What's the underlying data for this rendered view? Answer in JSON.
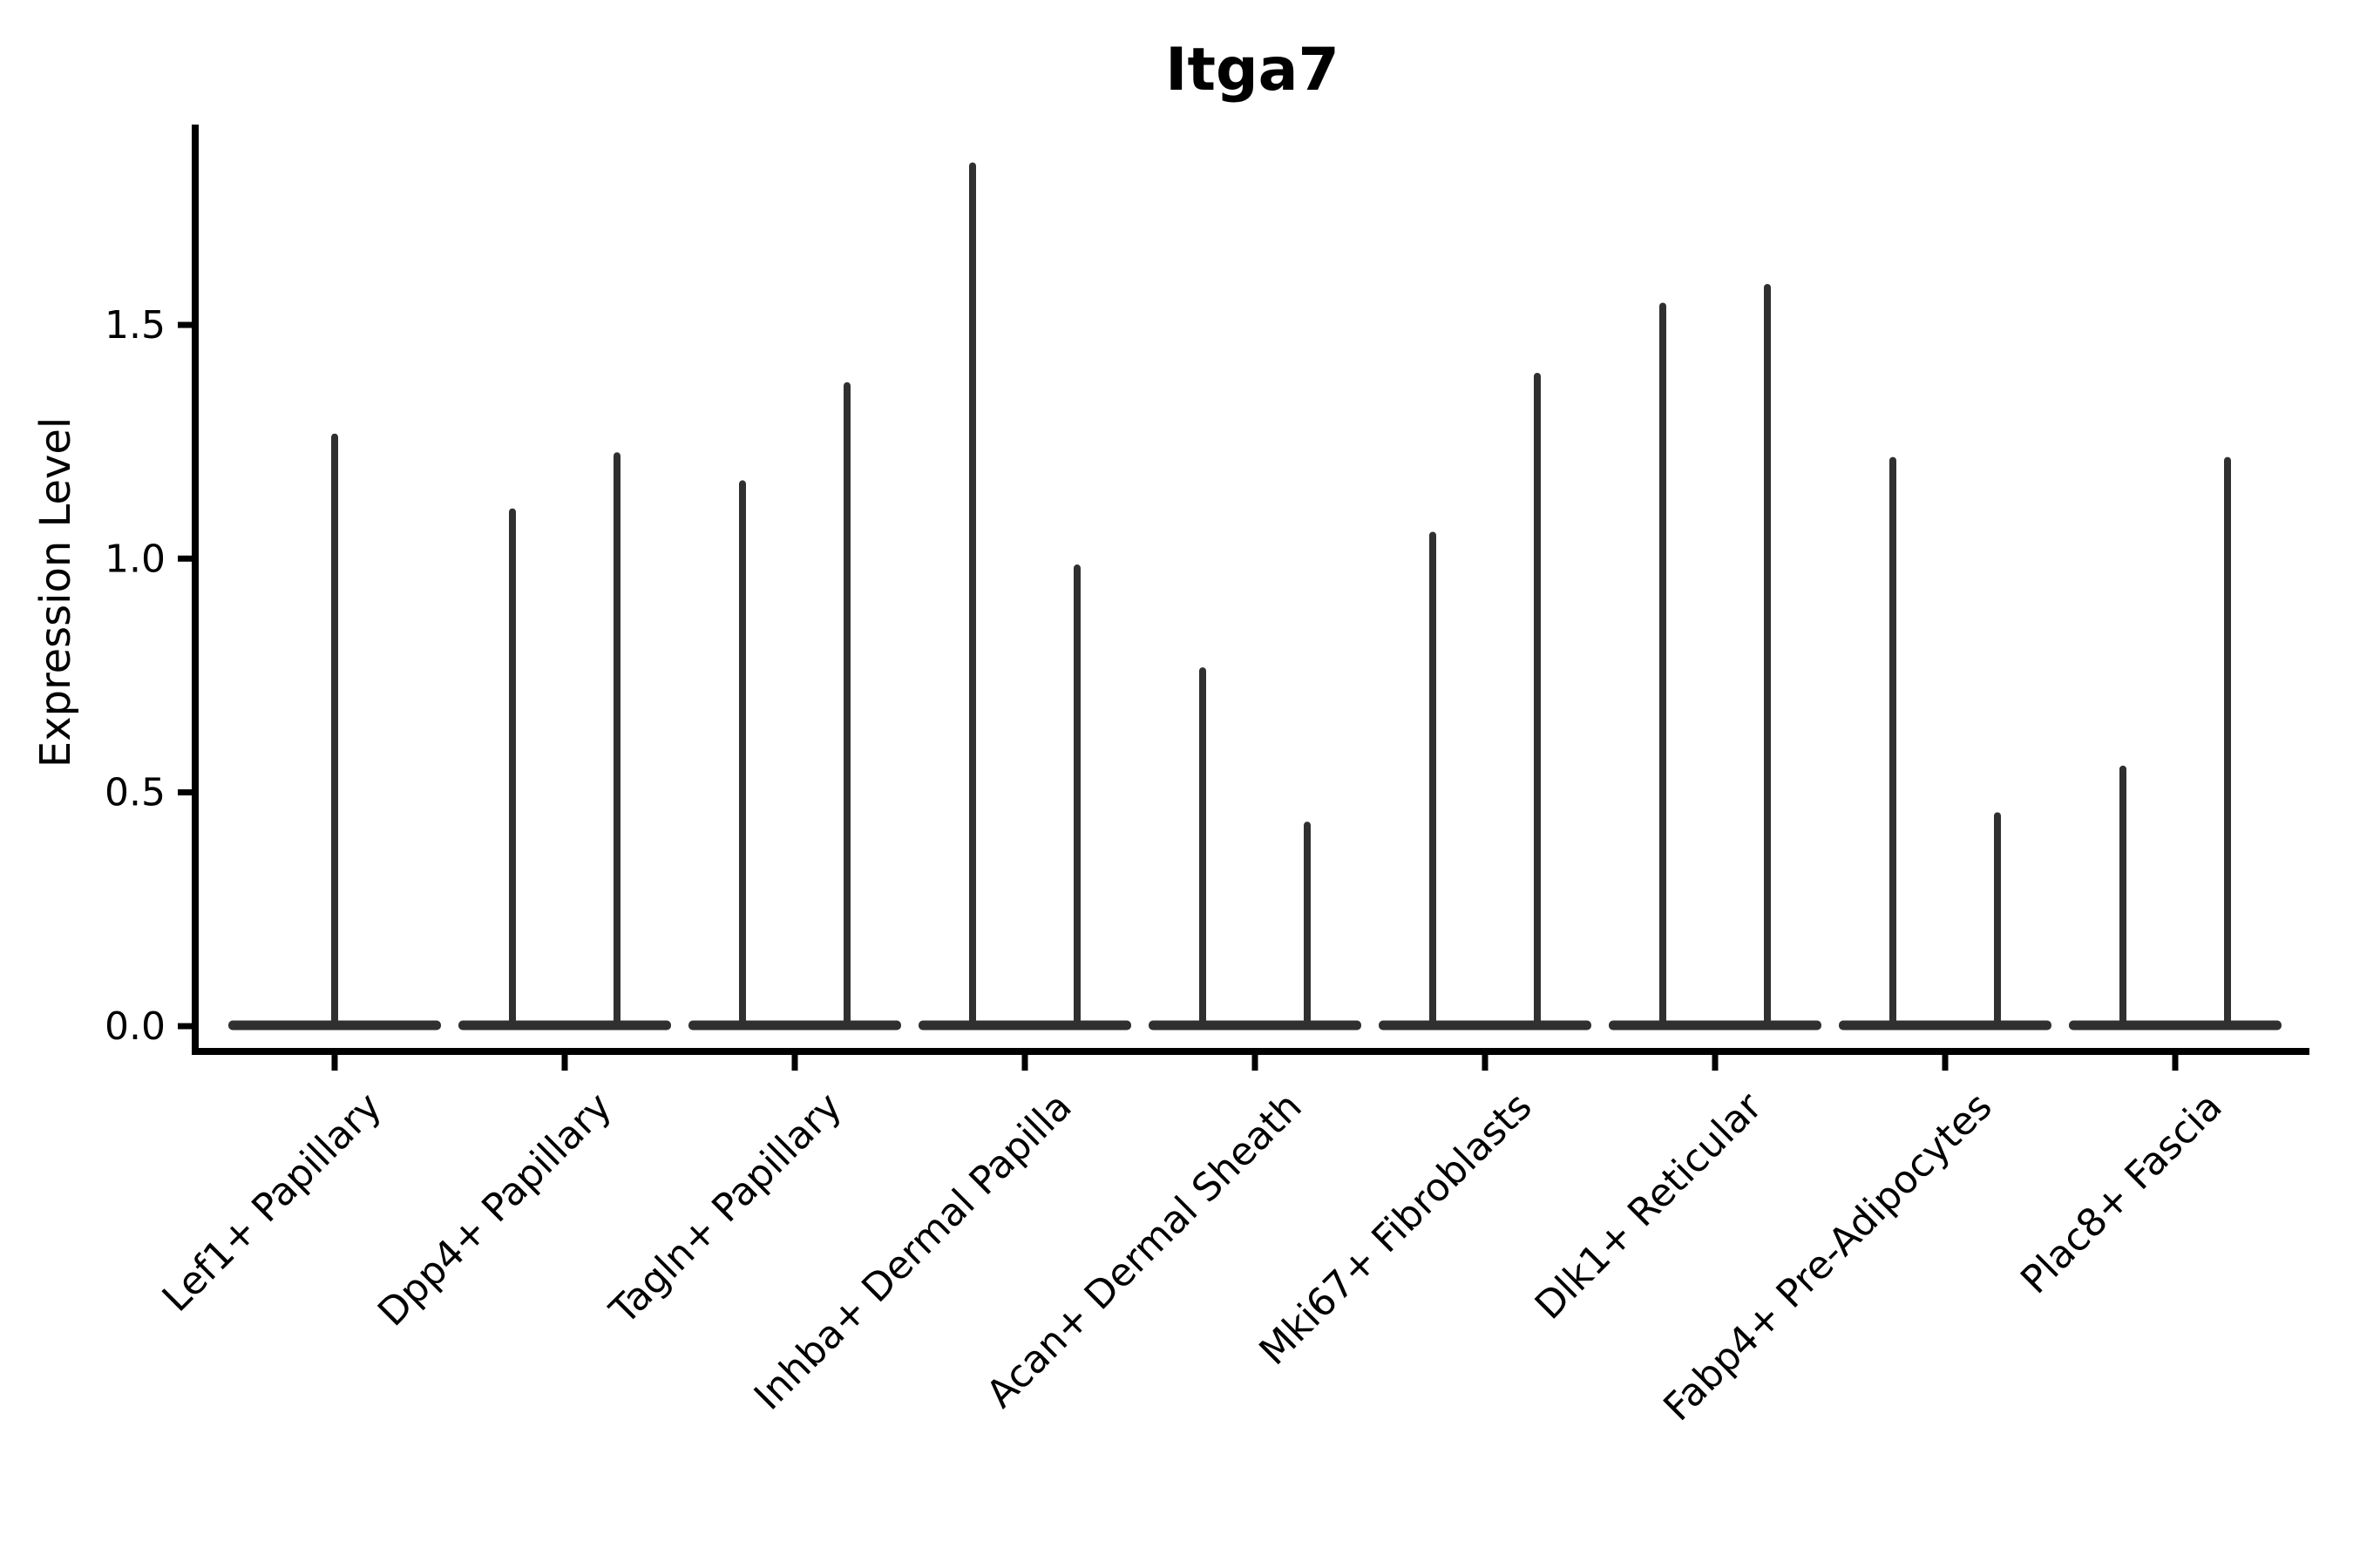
{
  "figure": {
    "title": "Itga7",
    "y_axis": {
      "label": "Expression Level",
      "tick_labels": [
        "0.0",
        "0.5",
        "1.0",
        "1.5"
      ]
    },
    "x_axis": {
      "categories": [
        "Lef1+ Papillary",
        "Dpp4+ Papillary",
        "Tagln+ Papillary",
        "Inhba+ Dermal Papilla",
        "Acan+ Dermal Sheath",
        "Mki67+ Fibroblasts",
        "Dlk1+ Reticular",
        "Fabp4+ Pre-Adipocytes",
        "Plac8+ Fascia"
      ]
    }
  },
  "chart_data": {
    "type": "violin",
    "title": "Itga7",
    "xlabel": "",
    "ylabel": "Expression Level",
    "ylim": [
      -0.05,
      1.93
    ],
    "yticks": [
      0.0,
      0.5,
      1.0,
      1.5
    ],
    "grid": false,
    "legend_position": "none",
    "background_color": "#ffffff",
    "violin_color": "#303030",
    "axis_color": "#000000",
    "categories": [
      "Lef1+ Papillary",
      "Dpp4+ Papillary",
      "Tagln+ Papillary",
      "Inhba+ Dermal Papilla",
      "Acan+ Dermal Sheath",
      "Mki67+ Fibroblasts",
      "Dlk1+ Reticular",
      "Fabp4+ Pre-Adipocytes",
      "Plac8+ Fascia"
    ],
    "series": [
      {
        "category": "Lef1+ Papillary",
        "violin_maxima": [
          1.26
        ]
      },
      {
        "category": "Dpp4+ Papillary",
        "violin_maxima": [
          1.1,
          1.22
        ]
      },
      {
        "category": "Tagln+ Papillary",
        "violin_maxima": [
          1.16,
          1.37
        ]
      },
      {
        "category": "Inhba+ Dermal Papilla",
        "violin_maxima": [
          1.84,
          0.98
        ]
      },
      {
        "category": "Acan+ Dermal Sheath",
        "violin_maxima": [
          0.76,
          0.43
        ]
      },
      {
        "category": "Mki67+ Fibroblasts",
        "violin_maxima": [
          1.05,
          1.39
        ]
      },
      {
        "category": "Dlk1+ Reticular",
        "violin_maxima": [
          1.54,
          1.58
        ]
      },
      {
        "category": "Fabp4+ Pre-Adipocytes",
        "violin_maxima": [
          1.21,
          0.45
        ]
      },
      {
        "category": "Plac8+ Fascia",
        "violin_maxima": [
          0.55,
          1.21
        ]
      }
    ],
    "violin_shape_note": "density concentrated at 0 (flat wide base) with thin spike to maximum"
  }
}
